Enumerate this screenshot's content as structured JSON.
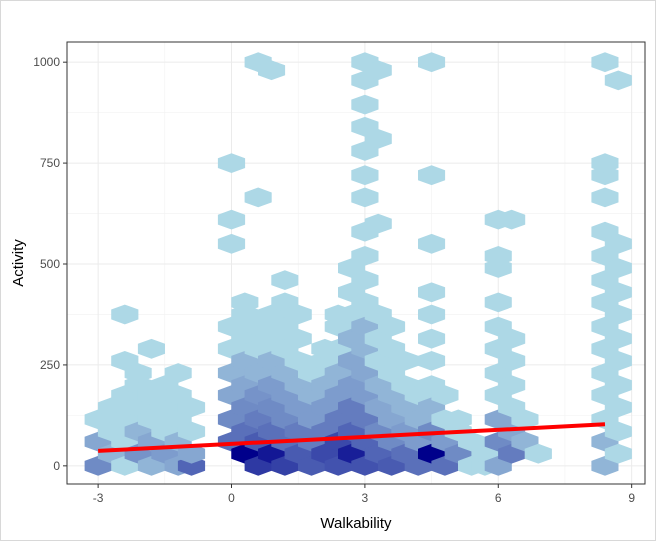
{
  "chart_data": {
    "type": "hexbin",
    "title": "",
    "xlabel": "Walkability",
    "ylabel": "Activity",
    "xlim": [
      -3.7,
      9.3
    ],
    "ylim": [
      -45,
      1050
    ],
    "x_ticks": [
      -3,
      0,
      3,
      6,
      9
    ],
    "x_tick_labels": [
      "-3",
      "0",
      "3",
      "6",
      "9"
    ],
    "y_ticks": [
      0,
      250,
      500,
      750,
      1000
    ],
    "y_tick_labels": [
      "0",
      "250",
      "500",
      "750",
      "1000"
    ],
    "grid": true,
    "hex_size_x": 0.305,
    "hex_size_y": 24.5,
    "count_color_low": "#add8e6",
    "count_color_high": "#00008b",
    "bins": [
      {
        "x": -3.0,
        "y": 0,
        "count": 6
      },
      {
        "x": -3.0,
        "y": 60,
        "count": 3
      },
      {
        "x": -3.0,
        "y": 115,
        "count": 1
      },
      {
        "x": -2.7,
        "y": 30,
        "count": 2
      },
      {
        "x": -2.7,
        "y": 85,
        "count": 1
      },
      {
        "x": -2.7,
        "y": 145,
        "count": 1
      },
      {
        "x": -2.4,
        "y": 0,
        "count": 1
      },
      {
        "x": -2.4,
        "y": 60,
        "count": 1
      },
      {
        "x": -2.4,
        "y": 115,
        "count": 1
      },
      {
        "x": -2.4,
        "y": 175,
        "count": 1
      },
      {
        "x": -2.4,
        "y": 260,
        "count": 1
      },
      {
        "x": -2.4,
        "y": 375,
        "count": 1
      },
      {
        "x": -2.1,
        "y": 30,
        "count": 5
      },
      {
        "x": -2.1,
        "y": 85,
        "count": 2
      },
      {
        "x": -2.1,
        "y": 145,
        "count": 1
      },
      {
        "x": -2.1,
        "y": 200,
        "count": 1
      },
      {
        "x": -2.1,
        "y": 230,
        "count": 1
      },
      {
        "x": -1.8,
        "y": 0,
        "count": 2
      },
      {
        "x": -1.8,
        "y": 60,
        "count": 3
      },
      {
        "x": -1.8,
        "y": 115,
        "count": 1
      },
      {
        "x": -1.8,
        "y": 175,
        "count": 1
      },
      {
        "x": -1.8,
        "y": 290,
        "count": 1
      },
      {
        "x": -1.5,
        "y": 30,
        "count": 4
      },
      {
        "x": -1.5,
        "y": 85,
        "count": 1
      },
      {
        "x": -1.5,
        "y": 145,
        "count": 1
      },
      {
        "x": -1.5,
        "y": 200,
        "count": 1
      },
      {
        "x": -1.2,
        "y": 0,
        "count": 3
      },
      {
        "x": -1.2,
        "y": 60,
        "count": 2
      },
      {
        "x": -1.2,
        "y": 115,
        "count": 1
      },
      {
        "x": -1.2,
        "y": 175,
        "count": 1
      },
      {
        "x": -1.2,
        "y": 230,
        "count": 1
      },
      {
        "x": -0.9,
        "y": 0,
        "count": 12
      },
      {
        "x": -0.9,
        "y": 30,
        "count": 3
      },
      {
        "x": -0.9,
        "y": 85,
        "count": 1
      },
      {
        "x": -0.9,
        "y": 145,
        "count": 1
      },
      {
        "x": 0.0,
        "y": 60,
        "count": 10
      },
      {
        "x": 0.0,
        "y": 115,
        "count": 6
      },
      {
        "x": 0.0,
        "y": 175,
        "count": 3
      },
      {
        "x": 0.0,
        "y": 230,
        "count": 2
      },
      {
        "x": 0.0,
        "y": 290,
        "count": 1
      },
      {
        "x": 0.0,
        "y": 345,
        "count": 1
      },
      {
        "x": 0.0,
        "y": 550,
        "count": 1
      },
      {
        "x": 0.0,
        "y": 610,
        "count": 1
      },
      {
        "x": 0.0,
        "y": 750,
        "count": 1
      },
      {
        "x": 0.3,
        "y": 30,
        "count": 40
      },
      {
        "x": 0.3,
        "y": 85,
        "count": 10
      },
      {
        "x": 0.3,
        "y": 145,
        "count": 6
      },
      {
        "x": 0.3,
        "y": 200,
        "count": 3
      },
      {
        "x": 0.3,
        "y": 260,
        "count": 2
      },
      {
        "x": 0.3,
        "y": 315,
        "count": 1
      },
      {
        "x": 0.3,
        "y": 375,
        "count": 1
      },
      {
        "x": 0.3,
        "y": 405,
        "count": 1
      },
      {
        "x": 0.6,
        "y": 0,
        "count": 22
      },
      {
        "x": 0.6,
        "y": 60,
        "count": 14
      },
      {
        "x": 0.6,
        "y": 115,
        "count": 8
      },
      {
        "x": 0.6,
        "y": 175,
        "count": 5
      },
      {
        "x": 0.6,
        "y": 230,
        "count": 2
      },
      {
        "x": 0.6,
        "y": 290,
        "count": 1
      },
      {
        "x": 0.6,
        "y": 345,
        "count": 1
      },
      {
        "x": 0.6,
        "y": 665,
        "count": 1
      },
      {
        "x": 0.6,
        "y": 1000,
        "count": 1
      },
      {
        "x": 0.9,
        "y": 30,
        "count": 32
      },
      {
        "x": 0.9,
        "y": 85,
        "count": 10
      },
      {
        "x": 0.9,
        "y": 145,
        "count": 6
      },
      {
        "x": 0.9,
        "y": 200,
        "count": 4
      },
      {
        "x": 0.9,
        "y": 260,
        "count": 2
      },
      {
        "x": 0.9,
        "y": 315,
        "count": 1
      },
      {
        "x": 0.9,
        "y": 375,
        "count": 1
      },
      {
        "x": 0.9,
        "y": 980,
        "count": 1
      },
      {
        "x": 1.2,
        "y": 0,
        "count": 20
      },
      {
        "x": 1.2,
        "y": 60,
        "count": 10
      },
      {
        "x": 1.2,
        "y": 115,
        "count": 6
      },
      {
        "x": 1.2,
        "y": 175,
        "count": 4
      },
      {
        "x": 1.2,
        "y": 230,
        "count": 2
      },
      {
        "x": 1.2,
        "y": 290,
        "count": 1
      },
      {
        "x": 1.2,
        "y": 345,
        "count": 1
      },
      {
        "x": 1.2,
        "y": 405,
        "count": 1
      },
      {
        "x": 1.2,
        "y": 460,
        "count": 1
      },
      {
        "x": 1.5,
        "y": 30,
        "count": 14
      },
      {
        "x": 1.5,
        "y": 85,
        "count": 8
      },
      {
        "x": 1.5,
        "y": 145,
        "count": 4
      },
      {
        "x": 1.5,
        "y": 200,
        "count": 2
      },
      {
        "x": 1.5,
        "y": 260,
        "count": 1
      },
      {
        "x": 1.5,
        "y": 315,
        "count": 1
      },
      {
        "x": 1.5,
        "y": 375,
        "count": 1
      },
      {
        "x": 1.8,
        "y": 0,
        "count": 14
      },
      {
        "x": 1.8,
        "y": 60,
        "count": 8
      },
      {
        "x": 1.8,
        "y": 115,
        "count": 4
      },
      {
        "x": 1.8,
        "y": 175,
        "count": 2
      },
      {
        "x": 1.8,
        "y": 230,
        "count": 1
      },
      {
        "x": 2.1,
        "y": 30,
        "count": 18
      },
      {
        "x": 2.1,
        "y": 85,
        "count": 8
      },
      {
        "x": 2.1,
        "y": 145,
        "count": 4
      },
      {
        "x": 2.1,
        "y": 200,
        "count": 2
      },
      {
        "x": 2.1,
        "y": 260,
        "count": 1
      },
      {
        "x": 2.1,
        "y": 290,
        "count": 1
      },
      {
        "x": 2.4,
        "y": 0,
        "count": 16
      },
      {
        "x": 2.4,
        "y": 60,
        "count": 18
      },
      {
        "x": 2.4,
        "y": 115,
        "count": 8
      },
      {
        "x": 2.4,
        "y": 175,
        "count": 4
      },
      {
        "x": 2.4,
        "y": 230,
        "count": 2
      },
      {
        "x": 2.4,
        "y": 290,
        "count": 1
      },
      {
        "x": 2.4,
        "y": 345,
        "count": 1
      },
      {
        "x": 2.4,
        "y": 375,
        "count": 1
      },
      {
        "x": 2.7,
        "y": 30,
        "count": 30
      },
      {
        "x": 2.7,
        "y": 85,
        "count": 12
      },
      {
        "x": 2.7,
        "y": 145,
        "count": 8
      },
      {
        "x": 2.7,
        "y": 200,
        "count": 4
      },
      {
        "x": 2.7,
        "y": 260,
        "count": 3
      },
      {
        "x": 2.7,
        "y": 315,
        "count": 2
      },
      {
        "x": 2.7,
        "y": 375,
        "count": 1
      },
      {
        "x": 2.7,
        "y": 430,
        "count": 1
      },
      {
        "x": 2.7,
        "y": 490,
        "count": 1
      },
      {
        "x": 3.0,
        "y": 0,
        "count": 16
      },
      {
        "x": 3.0,
        "y": 60,
        "count": 12
      },
      {
        "x": 3.0,
        "y": 115,
        "count": 8
      },
      {
        "x": 3.0,
        "y": 175,
        "count": 4
      },
      {
        "x": 3.0,
        "y": 230,
        "count": 3
      },
      {
        "x": 3.0,
        "y": 290,
        "count": 2
      },
      {
        "x": 3.0,
        "y": 345,
        "count": 2
      },
      {
        "x": 3.0,
        "y": 405,
        "count": 1
      },
      {
        "x": 3.0,
        "y": 460,
        "count": 1
      },
      {
        "x": 3.0,
        "y": 520,
        "count": 1
      },
      {
        "x": 3.0,
        "y": 580,
        "count": 1
      },
      {
        "x": 3.0,
        "y": 665,
        "count": 1
      },
      {
        "x": 3.0,
        "y": 720,
        "count": 1
      },
      {
        "x": 3.0,
        "y": 780,
        "count": 1
      },
      {
        "x": 3.0,
        "y": 840,
        "count": 1
      },
      {
        "x": 3.0,
        "y": 895,
        "count": 1
      },
      {
        "x": 3.0,
        "y": 955,
        "count": 1
      },
      {
        "x": 3.0,
        "y": 1000,
        "count": 1
      },
      {
        "x": 3.3,
        "y": 30,
        "count": 12
      },
      {
        "x": 3.3,
        "y": 85,
        "count": 6
      },
      {
        "x": 3.3,
        "y": 145,
        "count": 3
      },
      {
        "x": 3.3,
        "y": 200,
        "count": 2
      },
      {
        "x": 3.3,
        "y": 260,
        "count": 1
      },
      {
        "x": 3.3,
        "y": 315,
        "count": 1
      },
      {
        "x": 3.3,
        "y": 375,
        "count": 1
      },
      {
        "x": 3.3,
        "y": 600,
        "count": 1
      },
      {
        "x": 3.3,
        "y": 810,
        "count": 1
      },
      {
        "x": 3.3,
        "y": 980,
        "count": 1
      },
      {
        "x": 3.6,
        "y": 0,
        "count": 14
      },
      {
        "x": 3.6,
        "y": 60,
        "count": 6
      },
      {
        "x": 3.6,
        "y": 115,
        "count": 3
      },
      {
        "x": 3.6,
        "y": 175,
        "count": 2
      },
      {
        "x": 3.6,
        "y": 230,
        "count": 1
      },
      {
        "x": 3.6,
        "y": 290,
        "count": 1
      },
      {
        "x": 3.6,
        "y": 345,
        "count": 1
      },
      {
        "x": 3.9,
        "y": 30,
        "count": 10
      },
      {
        "x": 3.9,
        "y": 85,
        "count": 4
      },
      {
        "x": 3.9,
        "y": 145,
        "count": 2
      },
      {
        "x": 3.9,
        "y": 200,
        "count": 1
      },
      {
        "x": 3.9,
        "y": 260,
        "count": 1
      },
      {
        "x": 4.2,
        "y": 0,
        "count": 10
      },
      {
        "x": 4.2,
        "y": 60,
        "count": 4
      },
      {
        "x": 4.2,
        "y": 115,
        "count": 2
      },
      {
        "x": 4.2,
        "y": 175,
        "count": 1
      },
      {
        "x": 4.5,
        "y": 30,
        "count": 40
      },
      {
        "x": 4.5,
        "y": 85,
        "count": 6
      },
      {
        "x": 4.5,
        "y": 145,
        "count": 2
      },
      {
        "x": 4.5,
        "y": 200,
        "count": 1
      },
      {
        "x": 4.5,
        "y": 260,
        "count": 1
      },
      {
        "x": 4.5,
        "y": 315,
        "count": 1
      },
      {
        "x": 4.5,
        "y": 375,
        "count": 1
      },
      {
        "x": 4.5,
        "y": 430,
        "count": 1
      },
      {
        "x": 4.5,
        "y": 550,
        "count": 1
      },
      {
        "x": 4.5,
        "y": 720,
        "count": 1
      },
      {
        "x": 4.5,
        "y": 1000,
        "count": 1
      },
      {
        "x": 4.8,
        "y": 0,
        "count": 10
      },
      {
        "x": 4.8,
        "y": 60,
        "count": 4
      },
      {
        "x": 4.8,
        "y": 115,
        "count": 1
      },
      {
        "x": 4.8,
        "y": 175,
        "count": 1
      },
      {
        "x": 5.1,
        "y": 30,
        "count": 6
      },
      {
        "x": 5.1,
        "y": 85,
        "count": 1
      },
      {
        "x": 5.1,
        "y": 115,
        "count": 1
      },
      {
        "x": 5.4,
        "y": 0,
        "count": 1
      },
      {
        "x": 5.4,
        "y": 60,
        "count": 1
      },
      {
        "x": 5.7,
        "y": 0,
        "count": 1
      },
      {
        "x": 5.7,
        "y": 30,
        "count": 1
      },
      {
        "x": 6.0,
        "y": 0,
        "count": 3
      },
      {
        "x": 6.0,
        "y": 60,
        "count": 6
      },
      {
        "x": 6.0,
        "y": 115,
        "count": 3
      },
      {
        "x": 6.0,
        "y": 175,
        "count": 1
      },
      {
        "x": 6.0,
        "y": 230,
        "count": 1
      },
      {
        "x": 6.0,
        "y": 290,
        "count": 1
      },
      {
        "x": 6.0,
        "y": 345,
        "count": 1
      },
      {
        "x": 6.0,
        "y": 405,
        "count": 1
      },
      {
        "x": 6.0,
        "y": 490,
        "count": 1
      },
      {
        "x": 6.0,
        "y": 520,
        "count": 1
      },
      {
        "x": 6.0,
        "y": 610,
        "count": 1
      },
      {
        "x": 6.3,
        "y": 30,
        "count": 8
      },
      {
        "x": 6.3,
        "y": 85,
        "count": 3
      },
      {
        "x": 6.3,
        "y": 145,
        "count": 1
      },
      {
        "x": 6.3,
        "y": 200,
        "count": 1
      },
      {
        "x": 6.3,
        "y": 260,
        "count": 1
      },
      {
        "x": 6.3,
        "y": 315,
        "count": 1
      },
      {
        "x": 6.3,
        "y": 610,
        "count": 1
      },
      {
        "x": 6.6,
        "y": 60,
        "count": 2
      },
      {
        "x": 6.6,
        "y": 115,
        "count": 1
      },
      {
        "x": 6.9,
        "y": 30,
        "count": 1
      },
      {
        "x": 8.4,
        "y": 0,
        "count": 2
      },
      {
        "x": 8.4,
        "y": 60,
        "count": 2
      },
      {
        "x": 8.4,
        "y": 115,
        "count": 1
      },
      {
        "x": 8.4,
        "y": 175,
        "count": 1
      },
      {
        "x": 8.4,
        "y": 230,
        "count": 1
      },
      {
        "x": 8.4,
        "y": 290,
        "count": 1
      },
      {
        "x": 8.4,
        "y": 345,
        "count": 1
      },
      {
        "x": 8.4,
        "y": 405,
        "count": 1
      },
      {
        "x": 8.4,
        "y": 460,
        "count": 1
      },
      {
        "x": 8.4,
        "y": 520,
        "count": 1
      },
      {
        "x": 8.4,
        "y": 580,
        "count": 1
      },
      {
        "x": 8.4,
        "y": 665,
        "count": 1
      },
      {
        "x": 8.4,
        "y": 720,
        "count": 1
      },
      {
        "x": 8.4,
        "y": 750,
        "count": 1
      },
      {
        "x": 8.4,
        "y": 1000,
        "count": 1
      },
      {
        "x": 8.7,
        "y": 30,
        "count": 1
      },
      {
        "x": 8.7,
        "y": 85,
        "count": 1
      },
      {
        "x": 8.7,
        "y": 145,
        "count": 1
      },
      {
        "x": 8.7,
        "y": 200,
        "count": 1
      },
      {
        "x": 8.7,
        "y": 260,
        "count": 1
      },
      {
        "x": 8.7,
        "y": 315,
        "count": 1
      },
      {
        "x": 8.7,
        "y": 375,
        "count": 1
      },
      {
        "x": 8.7,
        "y": 430,
        "count": 1
      },
      {
        "x": 8.7,
        "y": 490,
        "count": 1
      },
      {
        "x": 8.7,
        "y": 550,
        "count": 1
      },
      {
        "x": 8.7,
        "y": 955,
        "count": 1
      }
    ],
    "trend_line": {
      "x": [
        -3.0,
        8.4
      ],
      "y": [
        37,
        103
      ],
      "color": "#ff0000"
    }
  }
}
